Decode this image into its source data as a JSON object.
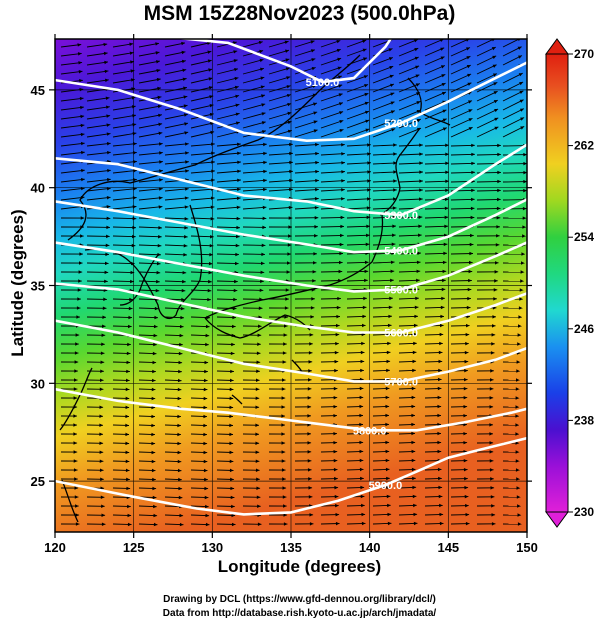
{
  "title": "MSM 15Z28Nov2023 (500.0hPa)",
  "xlabel": "Longitude (degrees)",
  "ylabel": "Latitude  (degrees)",
  "credit_line1": "Drawing by DCL (https://www.gfd-dennou.org/library/dcl/)",
  "credit_line2": "Data from http://database.rish.kyoto-u.ac.jp/arch/jmadata/",
  "colors": {
    "colorbar_stops": [
      "#e020d8",
      "#9a10d8",
      "#4a10d0",
      "#1a40e8",
      "#1a90f0",
      "#20d8d0",
      "#20d880",
      "#30d040",
      "#a0d820",
      "#f0d020",
      "#f09020",
      "#e85020",
      "#e02010"
    ],
    "contour": "#ffffff",
    "vectors": "#000000"
  },
  "chart_data": {
    "type": "heatmap",
    "xlim": [
      120,
      150
    ],
    "ylim": [
      22.4,
      47.6
    ],
    "xticks": [
      "120",
      "125",
      "130",
      "135",
      "140",
      "145",
      "150"
    ],
    "yticks": [
      "25",
      "30",
      "35",
      "40",
      "45"
    ],
    "colorbar": {
      "min": 230,
      "max": 270,
      "ticks": [
        "230",
        "238",
        "246",
        "254",
        "262",
        "270"
      ]
    },
    "contours": [
      {
        "label": "5100.0",
        "points": [
          [
            120,
            48.4
          ],
          [
            126,
            47.8
          ],
          [
            131,
            47.4
          ],
          [
            135,
            46.2
          ],
          [
            137,
            45.4
          ],
          [
            139,
            45.6
          ],
          [
            141,
            47.2
          ],
          [
            142,
            48.4
          ]
        ]
      },
      {
        "label": "5200.0",
        "points": [
          [
            120,
            45.5
          ],
          [
            124,
            45.0
          ],
          [
            128,
            44.0
          ],
          [
            132,
            42.8
          ],
          [
            136,
            42.4
          ],
          [
            139,
            42.5
          ],
          [
            142,
            43.3
          ],
          [
            145,
            44.4
          ],
          [
            148,
            45.6
          ],
          [
            150,
            46.4
          ]
        ]
      },
      {
        "label": "5300.0",
        "points": [
          [
            120,
            41.5
          ],
          [
            124,
            41.2
          ],
          [
            128,
            40.4
          ],
          [
            132,
            39.6
          ],
          [
            136,
            39.3
          ],
          [
            139,
            38.8
          ],
          [
            142,
            38.6
          ],
          [
            145,
            39.6
          ],
          [
            148,
            41.2
          ],
          [
            150,
            42.2
          ]
        ]
      },
      {
        "label": "5400.0",
        "points": [
          [
            120,
            39.3
          ],
          [
            124,
            38.8
          ],
          [
            128,
            38.2
          ],
          [
            132,
            37.6
          ],
          [
            136,
            37.1
          ],
          [
            139,
            36.7
          ],
          [
            142,
            36.8
          ],
          [
            145,
            37.5
          ],
          [
            148,
            38.6
          ],
          [
            150,
            39.4
          ]
        ]
      },
      {
        "label": "5500.0",
        "points": [
          [
            120,
            37.2
          ],
          [
            124,
            36.7
          ],
          [
            128,
            36.1
          ],
          [
            132,
            35.5
          ],
          [
            136,
            35.0
          ],
          [
            139,
            34.7
          ],
          [
            142,
            34.8
          ],
          [
            145,
            35.5
          ],
          [
            148,
            36.5
          ],
          [
            150,
            37.2
          ]
        ]
      },
      {
        "label": "5600.0",
        "points": [
          [
            120,
            35.1
          ],
          [
            124,
            34.8
          ],
          [
            128,
            34.1
          ],
          [
            132,
            33.4
          ],
          [
            136,
            32.9
          ],
          [
            139,
            32.6
          ],
          [
            142,
            32.6
          ],
          [
            145,
            33.2
          ],
          [
            148,
            34.0
          ],
          [
            150,
            34.6
          ]
        ]
      },
      {
        "label": "5700.0",
        "points": [
          [
            120,
            33.2
          ],
          [
            124,
            32.6
          ],
          [
            128,
            31.8
          ],
          [
            132,
            31.0
          ],
          [
            136,
            30.5
          ],
          [
            139,
            30.1
          ],
          [
            142,
            30.1
          ],
          [
            145,
            30.6
          ],
          [
            148,
            31.2
          ],
          [
            150,
            31.8
          ]
        ]
      },
      {
        "label": "5800.0",
        "points": [
          [
            120,
            29.7
          ],
          [
            124,
            29.1
          ],
          [
            128,
            28.7
          ],
          [
            131,
            28.5
          ],
          [
            134,
            28.2
          ],
          [
            137,
            27.9
          ],
          [
            140,
            27.6
          ],
          [
            143,
            27.6
          ],
          [
            146,
            28.0
          ],
          [
            149,
            28.5
          ],
          [
            150,
            28.7
          ]
        ]
      },
      {
        "label": "5900.0",
        "points": [
          [
            120,
            25.0
          ],
          [
            125,
            24.2
          ],
          [
            129,
            23.6
          ],
          [
            132,
            23.3
          ],
          [
            135,
            23.4
          ],
          [
            138,
            24.0
          ],
          [
            141,
            24.8
          ],
          [
            143,
            25.5
          ],
          [
            145,
            26.2
          ],
          [
            147,
            26.6
          ],
          [
            150,
            27.2
          ]
        ]
      }
    ],
    "grid": true
  }
}
